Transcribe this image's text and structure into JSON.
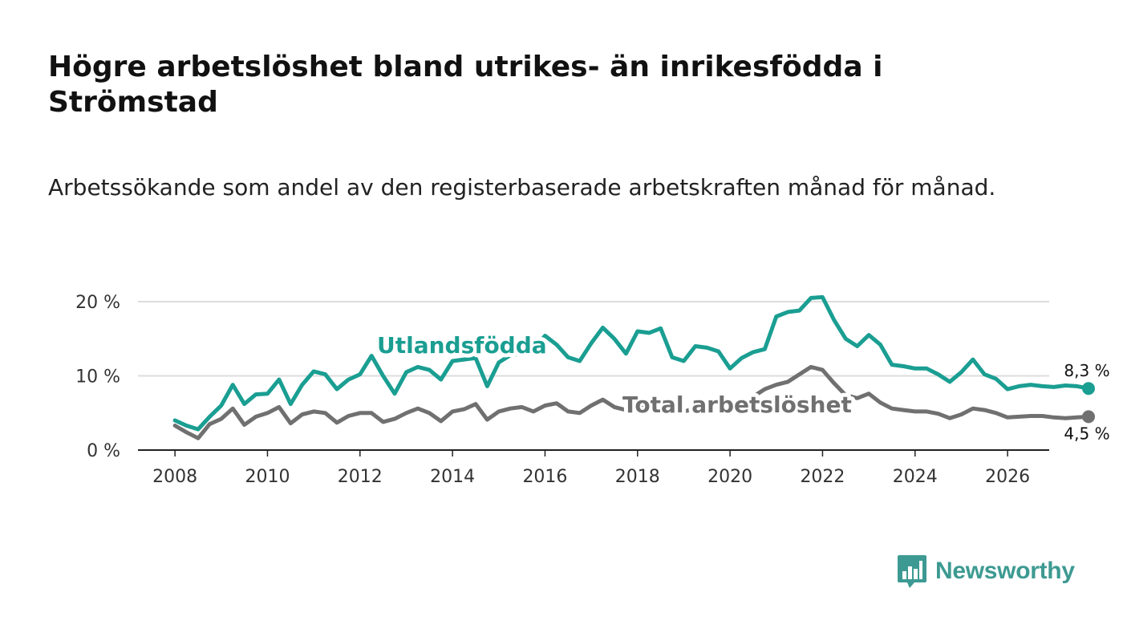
{
  "title": "Högre arbetslöshet bland utrikes- än inrikesfödda i Strömstad",
  "subtitle": "Arbetssökande som andel av den registerbaserade arbetskraften månad för månad.",
  "brand": "Newsworthy",
  "colors": {
    "foreign": "#1a9e92",
    "total": "#707070",
    "grid": "#dddddd",
    "axis": "#222222",
    "brand": "#3d9a92"
  },
  "chart_data": {
    "type": "line",
    "x_start": 2008,
    "x_step_years": 0.25,
    "ylim": [
      0,
      20
    ],
    "xlim": [
      2007.2,
      2026.9
    ],
    "y_ticks": [
      0,
      10,
      20
    ],
    "y_tick_labels": [
      "0 %",
      "10 %",
      "20 %"
    ],
    "x_ticks": [
      2008,
      2010,
      2012,
      2014,
      2016,
      2018,
      2020,
      2022,
      2024,
      2026
    ],
    "x_tick_labels": [
      "2008",
      "2010",
      "2012",
      "2014",
      "2016",
      "2018",
      "2020",
      "2022",
      "2024",
      "2026"
    ],
    "series": [
      {
        "name": "Utlandsfödda",
        "label": "Utlandsfödda",
        "end_label": "8,3 %",
        "color": "#1a9e92",
        "values": [
          4.0,
          3.3,
          2.8,
          4.5,
          6.0,
          8.8,
          6.2,
          7.5,
          7.6,
          9.5,
          6.2,
          8.8,
          10.6,
          10.2,
          8.2,
          9.5,
          10.2,
          12.7,
          10.0,
          7.6,
          10.5,
          11.2,
          10.8,
          9.5,
          12.0,
          12.2,
          12.4,
          8.6,
          11.8,
          12.8,
          13.0,
          13.6,
          15.4,
          14.2,
          12.5,
          12.0,
          14.4,
          16.5,
          15.0,
          13.0,
          16.0,
          15.8,
          16.4,
          12.5,
          12.0,
          14.0,
          13.8,
          13.3,
          11.0,
          12.4,
          13.2,
          13.6,
          18.0,
          18.6,
          18.8,
          20.5,
          20.6,
          17.5,
          15.0,
          14.0,
          15.5,
          14.2,
          11.5,
          11.3,
          11.0,
          11.0,
          10.2,
          9.2,
          10.5,
          12.2,
          10.2,
          9.6,
          8.2,
          8.6,
          8.8,
          8.6,
          8.5,
          8.7,
          8.6,
          8.3
        ]
      },
      {
        "name": "Total arbetslöshet",
        "label": "Total arbetslöshet",
        "end_label": "4,5 %",
        "color": "#707070",
        "values": [
          3.3,
          2.4,
          1.6,
          3.5,
          4.2,
          5.6,
          3.4,
          4.5,
          5.0,
          5.8,
          3.6,
          4.8,
          5.2,
          5.0,
          3.7,
          4.6,
          5.0,
          5.0,
          3.8,
          4.2,
          5.0,
          5.6,
          5.0,
          3.9,
          5.2,
          5.5,
          6.2,
          4.1,
          5.2,
          5.6,
          5.8,
          5.2,
          6.0,
          6.3,
          5.2,
          5.0,
          6.0,
          6.8,
          5.8,
          5.4,
          6.2,
          6.0,
          5.8,
          5.0,
          5.2,
          5.6,
          5.4,
          5.2,
          5.0,
          5.8,
          7.2,
          8.2,
          8.8,
          9.2,
          10.2,
          11.2,
          10.8,
          9.0,
          7.4,
          7.0,
          7.6,
          6.4,
          5.6,
          5.4,
          5.2,
          5.2,
          4.9,
          4.3,
          4.8,
          5.6,
          5.4,
          5.0,
          4.4,
          4.5,
          4.6,
          4.6,
          4.4,
          4.3,
          4.4,
          4.5
        ]
      }
    ]
  }
}
